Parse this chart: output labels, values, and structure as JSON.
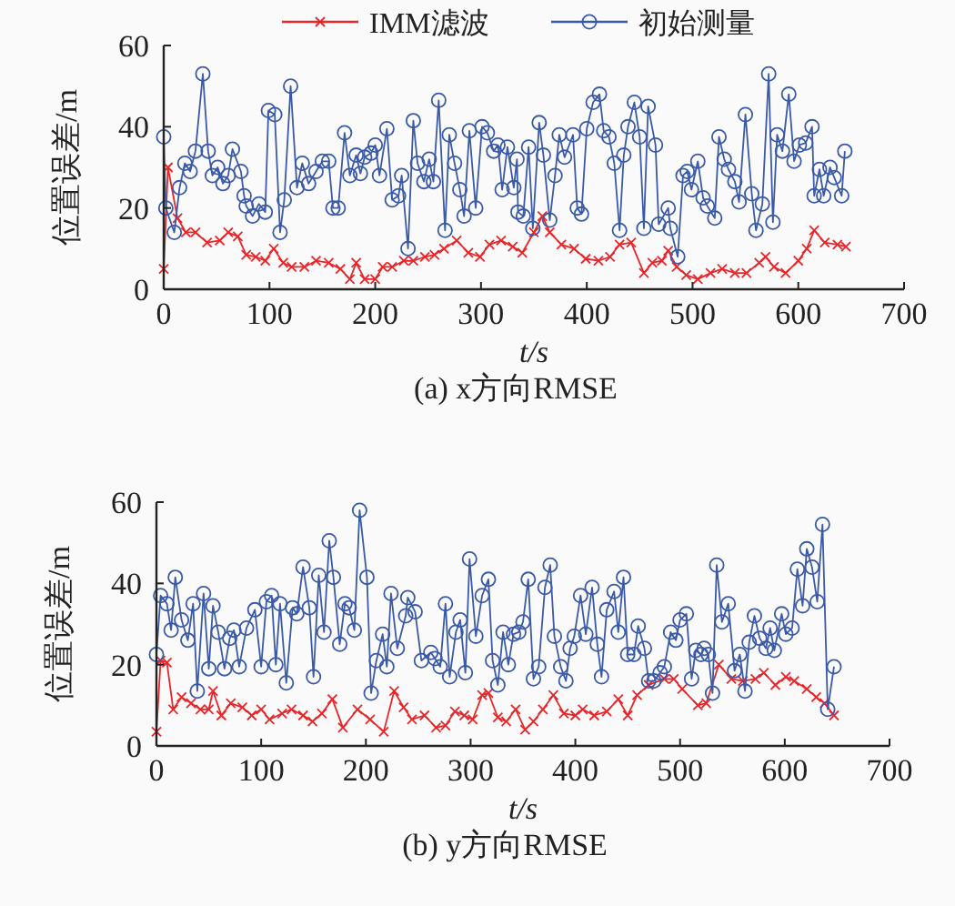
{
  "chart_data": [
    {
      "type": "line",
      "title": "(a) x方向RMSE",
      "xlabel": "t/s",
      "ylabel": "位置误差/m",
      "xlim": [
        0,
        700
      ],
      "xticks": [
        0,
        100,
        200,
        300,
        400,
        500,
        600,
        700
      ],
      "ylim": [
        0,
        60
      ],
      "yticks": [
        0,
        20,
        40,
        60
      ],
      "legend": "top",
      "grid": false,
      "series": [
        {
          "name": "IMM滤波",
          "color": "#e8262a",
          "marker": "cross",
          "x": [
            0,
            4,
            13,
            21,
            30,
            41,
            53,
            61,
            70,
            78,
            87,
            96,
            104,
            113,
            121,
            133,
            144,
            156,
            167,
            176,
            182,
            190,
            200,
            207,
            216,
            227,
            236,
            247,
            256,
            265,
            277,
            288,
            299,
            308,
            319,
            330,
            339,
            350,
            358,
            365,
            376,
            388,
            399,
            411,
            422,
            431,
            442,
            454,
            462,
            471,
            477,
            485,
            494,
            505,
            517,
            528,
            540,
            551,
            563,
            569,
            577,
            588,
            600,
            608,
            615,
            625,
            637,
            645
          ],
          "values": [
            5,
            30,
            17.5,
            14,
            14,
            11.5,
            12,
            14,
            13,
            8.5,
            8,
            7,
            10,
            6.5,
            5.5,
            5.5,
            7,
            6.5,
            5,
            2.5,
            6.5,
            2.5,
            2.5,
            5.5,
            5.5,
            7,
            7,
            8,
            8.5,
            10,
            12,
            9,
            8,
            11,
            12,
            10.5,
            9,
            14,
            18,
            14,
            11,
            10,
            7.5,
            7,
            8,
            11,
            11.5,
            4,
            6.5,
            7,
            9.5,
            5.5,
            3.5,
            2.5,
            4,
            5,
            4,
            4,
            6.5,
            8,
            5.5,
            4,
            7,
            10,
            14.5,
            11.5,
            11,
            10.5
          ]
        },
        {
          "name": "初始测量",
          "color": "#3a5aa8",
          "marker": "circle",
          "x": [
            0,
            2,
            10,
            15,
            20,
            25,
            30,
            37,
            42,
            46,
            51,
            56,
            61,
            65,
            73,
            76,
            78,
            84,
            90,
            96,
            99,
            105,
            110,
            114,
            120,
            126,
            131,
            137,
            144,
            150,
            156,
            160,
            165,
            171,
            176,
            182,
            186,
            190,
            196,
            200,
            204,
            211,
            216,
            222,
            225,
            231,
            236,
            240,
            246,
            251,
            255,
            260,
            266,
            270,
            275,
            280,
            284,
            289,
            295,
            301,
            306,
            312,
            316,
            320,
            325,
            331,
            334,
            335,
            340,
            345,
            349,
            355,
            359,
            365,
            370,
            374,
            379,
            387,
            391,
            395,
            400,
            406,
            412,
            416,
            421,
            426,
            431,
            435,
            439,
            445,
            450,
            454,
            458,
            465,
            468,
            477,
            479,
            486,
            491,
            495,
            499,
            505,
            510,
            514,
            521,
            525,
            530,
            534,
            540,
            544,
            550,
            556,
            560,
            566,
            572,
            576,
            580,
            585,
            591,
            596,
            601,
            607,
            613,
            615,
            620,
            624,
            630,
            634,
            641,
            644
          ],
          "values": [
            37.5,
            20,
            14,
            25,
            31,
            29,
            34,
            53,
            34,
            28,
            30,
            26,
            28,
            34.5,
            29,
            23,
            20.5,
            18,
            21,
            19,
            44,
            43,
            14,
            22,
            50,
            25,
            31,
            26,
            29,
            31.5,
            31.5,
            20,
            20,
            38.5,
            28,
            33,
            28.5,
            32.5,
            33.5,
            35.5,
            28,
            39.5,
            22,
            23,
            28,
            10,
            41.5,
            31,
            26.5,
            32,
            26.5,
            46.5,
            14.5,
            38,
            31,
            24.5,
            18,
            39,
            20,
            40,
            38.5,
            34,
            35.5,
            24.5,
            35,
            25,
            32,
            19,
            18,
            35,
            15,
            41,
            33,
            17,
            28,
            38,
            32.5,
            38,
            20,
            18.5,
            39.5,
            46,
            48,
            39,
            37.5,
            31,
            14.5,
            33,
            40,
            46,
            37.5,
            15,
            45,
            35.5,
            16,
            20,
            15,
            8,
            28,
            29,
            24.5,
            31.5,
            22.5,
            20.5,
            17.5,
            37.5,
            32,
            29.5,
            26.5,
            21.5,
            43,
            23.5,
            14.5,
            21,
            53,
            16.5,
            38,
            34,
            48,
            31.5,
            35.5,
            36,
            40,
            23,
            29.5,
            23,
            30,
            27.5,
            23,
            34
          ]
        }
      ]
    },
    {
      "type": "line",
      "title": "(b) y方向RMSE",
      "xlabel": "t/s",
      "ylabel": "位置误差/m",
      "xlim": [
        0,
        700
      ],
      "xticks": [
        0,
        100,
        200,
        300,
        400,
        500,
        600,
        700
      ],
      "ylim": [
        0,
        60
      ],
      "yticks": [
        0,
        20,
        40,
        60
      ],
      "grid": false,
      "series": [
        {
          "color": "#e8262a",
          "marker": "cross",
          "x": [
            0,
            4,
            10,
            16,
            24,
            33,
            42,
            50,
            54,
            62,
            71,
            82,
            91,
            100,
            108,
            120,
            129,
            140,
            149,
            158,
            168,
            178,
            192,
            204,
            217,
            227,
            236,
            244,
            256,
            267,
            276,
            285,
            294,
            302,
            311,
            317,
            326,
            334,
            343,
            352,
            360,
            369,
            379,
            389,
            400,
            407,
            418,
            430,
            441,
            450,
            459,
            470,
            485,
            494,
            502,
            517,
            525,
            537,
            549,
            560,
            572,
            580,
            591,
            601,
            609,
            621,
            630,
            638,
            647
          ],
          "values": [
            3.5,
            21,
            20.5,
            9,
            12,
            10.5,
            9,
            9,
            13.5,
            7.5,
            10.5,
            9.5,
            7.5,
            9,
            6.5,
            8,
            9,
            7.5,
            6,
            8,
            11.5,
            4.5,
            9,
            6.5,
            3.5,
            13.5,
            9.5,
            6.5,
            7.5,
            4.5,
            5,
            8.5,
            7.5,
            6.5,
            12.5,
            13,
            7,
            6,
            9,
            4,
            6,
            9,
            12.5,
            8,
            7.5,
            9,
            7.5,
            8.5,
            11.5,
            7.5,
            12.5,
            15,
            16.5,
            16.5,
            14,
            10,
            10.5,
            20,
            16.5,
            16,
            16.5,
            18,
            15,
            17,
            16,
            14,
            12,
            10.5,
            7.5
          ]
        },
        {
          "color": "#3a5aa8",
          "marker": "circle",
          "x": [
            0,
            4,
            10,
            14,
            18,
            24,
            30,
            35,
            39,
            45,
            50,
            54,
            59,
            65,
            70,
            74,
            79,
            86,
            94,
            100,
            105,
            110,
            114,
            118,
            124,
            130,
            134,
            140,
            146,
            150,
            155,
            160,
            165,
            169,
            175,
            180,
            184,
            189,
            194,
            201,
            205,
            210,
            216,
            220,
            224,
            230,
            238,
            240,
            247,
            253,
            262,
            266,
            271,
            276,
            280,
            286,
            290,
            295,
            299,
            305,
            311,
            317,
            321,
            326,
            331,
            336,
            341,
            346,
            350,
            355,
            360,
            365,
            371,
            376,
            380,
            386,
            391,
            395,
            399,
            405,
            410,
            416,
            421,
            425,
            430,
            437,
            441,
            446,
            450,
            456,
            460,
            466,
            470,
            475,
            481,
            485,
            491,
            496,
            500,
            506,
            511,
            515,
            520,
            523,
            527,
            531,
            535,
            540,
            546,
            552,
            557,
            562,
            566,
            571,
            576,
            582,
            586,
            590,
            597,
            601,
            607,
            612,
            617,
            621,
            626,
            631,
            636,
            641,
            647
          ],
          "values": [
            22.5,
            37,
            35,
            28.5,
            41.5,
            31,
            26,
            35,
            13.5,
            37.5,
            19,
            34.5,
            28,
            19,
            26.5,
            28.5,
            19.5,
            29,
            33.5,
            19.5,
            35.5,
            37,
            20,
            35,
            15.5,
            34,
            32.5,
            44,
            34,
            17,
            42,
            28,
            50.5,
            41.5,
            25,
            35,
            34,
            28.5,
            58,
            41.5,
            13,
            21,
            27.5,
            19.5,
            37.5,
            24,
            32,
            36.5,
            33,
            21,
            23,
            21.5,
            19.5,
            35,
            17,
            28,
            31,
            18,
            46,
            27,
            37,
            41,
            21,
            15,
            28,
            20,
            27.5,
            28,
            30.5,
            41,
            16.5,
            19.5,
            39,
            44.5,
            27,
            19.5,
            16,
            24,
            27,
            37,
            27.5,
            39,
            25,
            17,
            33.5,
            38,
            28,
            41.5,
            22.5,
            22.5,
            29.5,
            24,
            16,
            16,
            18,
            19.5,
            28,
            26,
            31,
            32.5,
            16.5,
            23.5,
            22.5,
            24,
            22.5,
            13,
            44.5,
            30.5,
            35,
            18.5,
            22.5,
            13.5,
            25.5,
            32,
            26.5,
            24,
            29,
            23.5,
            32.5,
            27.5,
            29,
            43.5,
            34.5,
            48.5,
            44,
            35.5,
            54.5,
            9,
            19.5
          ]
        }
      ]
    }
  ]
}
